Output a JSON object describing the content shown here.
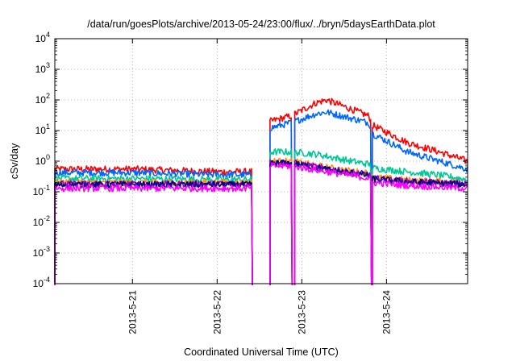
{
  "chart_data": {
    "type": "line",
    "title": "/data/run/goesPlots/archive/2013-05-24/23:00/flux/../bryn/5daysEarthData.plot",
    "xlabel": "Coordinated Universal Time (UTC)",
    "ylabel": "cSv/day",
    "yscale": "log",
    "ylim": [
      0.0001,
      10000
    ],
    "xlim": [
      "2013-05-20 02:00",
      "2013-05-24 23:00"
    ],
    "grid": true,
    "x_ticks": [
      "2013-5-21",
      "2013-5-22",
      "2013-5-23",
      "2013-5-24"
    ],
    "y_ticks": [
      {
        "base": "10",
        "exp": "-4"
      },
      {
        "base": "10",
        "exp": "-3"
      },
      {
        "base": "10",
        "exp": "-2"
      },
      {
        "base": "10",
        "exp": "-1"
      },
      {
        "base": "10",
        "exp": "0"
      },
      {
        "base": "10",
        "exp": "1"
      },
      {
        "base": "10",
        "exp": "2"
      },
      {
        "base": "10",
        "exp": "3"
      },
      {
        "base": "10",
        "exp": "4"
      }
    ],
    "gaps": [
      {
        "from": "2013-05-22 09:50",
        "to": "2013-05-22 15:00"
      },
      {
        "from": "2013-05-22 21:00",
        "to": "2013-05-22 22:00"
      },
      {
        "from": "2013-05-23 19:30",
        "to": "2013-05-23 20:00"
      }
    ],
    "series": [
      {
        "color": "#ff0000",
        "x": [
          "2013-05-20 02:00",
          "2013-05-21 00:00",
          "2013-05-22 00:00",
          "2013-05-22 09:45",
          "2013-05-22 15:00",
          "2013-05-22 21:00",
          "2013-05-23 04:00",
          "2013-05-23 07:00",
          "2013-05-23 14:00",
          "2013-05-23 19:00",
          "2013-05-23 20:00",
          "2013-05-24 06:00",
          "2013-05-24 15:00",
          "2013-05-24 23:00"
        ],
        "values": [
          0.55,
          0.55,
          0.45,
          0.45,
          20,
          30,
          80,
          100,
          50,
          30,
          15,
          4,
          2,
          1
        ]
      },
      {
        "color": "#0066ff",
        "x": [
          "2013-05-20 02:00",
          "2013-05-21 00:00",
          "2013-05-22 00:00",
          "2013-05-22 09:45",
          "2013-05-22 15:00",
          "2013-05-22 21:00",
          "2013-05-23 04:00",
          "2013-05-23 07:00",
          "2013-05-23 14:00",
          "2013-05-23 19:00",
          "2013-05-23 20:00",
          "2013-05-24 06:00",
          "2013-05-24 15:00",
          "2013-05-24 23:00"
        ],
        "values": [
          0.42,
          0.42,
          0.36,
          0.36,
          12,
          18,
          35,
          40,
          25,
          18,
          8,
          2,
          1,
          0.55
        ]
      },
      {
        "color": "#00c896",
        "x": [
          "2013-05-20 02:00",
          "2013-05-21 00:00",
          "2013-05-22 00:00",
          "2013-05-22 09:45",
          "2013-05-22 15:00",
          "2013-05-22 21:00",
          "2013-05-23 04:00",
          "2013-05-23 14:00",
          "2013-05-23 19:00",
          "2013-05-23 20:00",
          "2013-05-24 06:00",
          "2013-05-24 15:00",
          "2013-05-24 23:00"
        ],
        "values": [
          0.27,
          0.27,
          0.25,
          0.25,
          2.0,
          2.0,
          1.7,
          1.0,
          0.8,
          0.6,
          0.45,
          0.35,
          0.25
        ]
      },
      {
        "color": "#ff9900",
        "x": [
          "2013-05-20 02:00",
          "2013-05-22 09:45",
          "2013-05-22 15:00",
          "2013-05-22 21:00",
          "2013-05-23 10:00",
          "2013-05-23 19:00",
          "2013-05-23 20:00",
          "2013-05-24 06:00",
          "2013-05-24 23:00"
        ],
        "values": [
          0.2,
          0.2,
          1.0,
          1.0,
          0.55,
          0.4,
          0.3,
          0.24,
          0.2
        ]
      },
      {
        "color": "#9900cc",
        "x": [
          "2013-05-20 02:00",
          "2013-05-22 09:45",
          "2013-05-22 15:00",
          "2013-05-22 21:00",
          "2013-05-23 10:00",
          "2013-05-23 19:00",
          "2013-05-23 20:00",
          "2013-05-24 06:00",
          "2013-05-24 23:00"
        ],
        "values": [
          0.18,
          0.18,
          0.9,
          0.9,
          0.5,
          0.36,
          0.27,
          0.22,
          0.18
        ]
      },
      {
        "color": "#000080",
        "x": [
          "2013-05-20 02:00",
          "2013-05-22 09:45",
          "2013-05-22 15:00",
          "2013-05-22 21:00",
          "2013-05-23 10:00",
          "2013-05-23 19:00",
          "2013-05-23 20:00",
          "2013-05-24 06:00",
          "2013-05-24 23:00"
        ],
        "values": [
          0.17,
          0.17,
          0.85,
          0.85,
          0.47,
          0.34,
          0.26,
          0.21,
          0.17
        ]
      },
      {
        "color": "#ff00ff",
        "x": [
          "2013-05-20 02:00",
          "2013-05-22 09:45",
          "2013-05-22 15:00",
          "2013-05-22 21:00",
          "2013-05-23 10:00",
          "2013-05-23 19:00",
          "2013-05-23 20:00",
          "2013-05-24 06:00",
          "2013-05-24 23:00"
        ],
        "values": [
          0.13,
          0.13,
          0.7,
          0.7,
          0.4,
          0.28,
          0.2,
          0.16,
          0.13
        ]
      }
    ]
  }
}
